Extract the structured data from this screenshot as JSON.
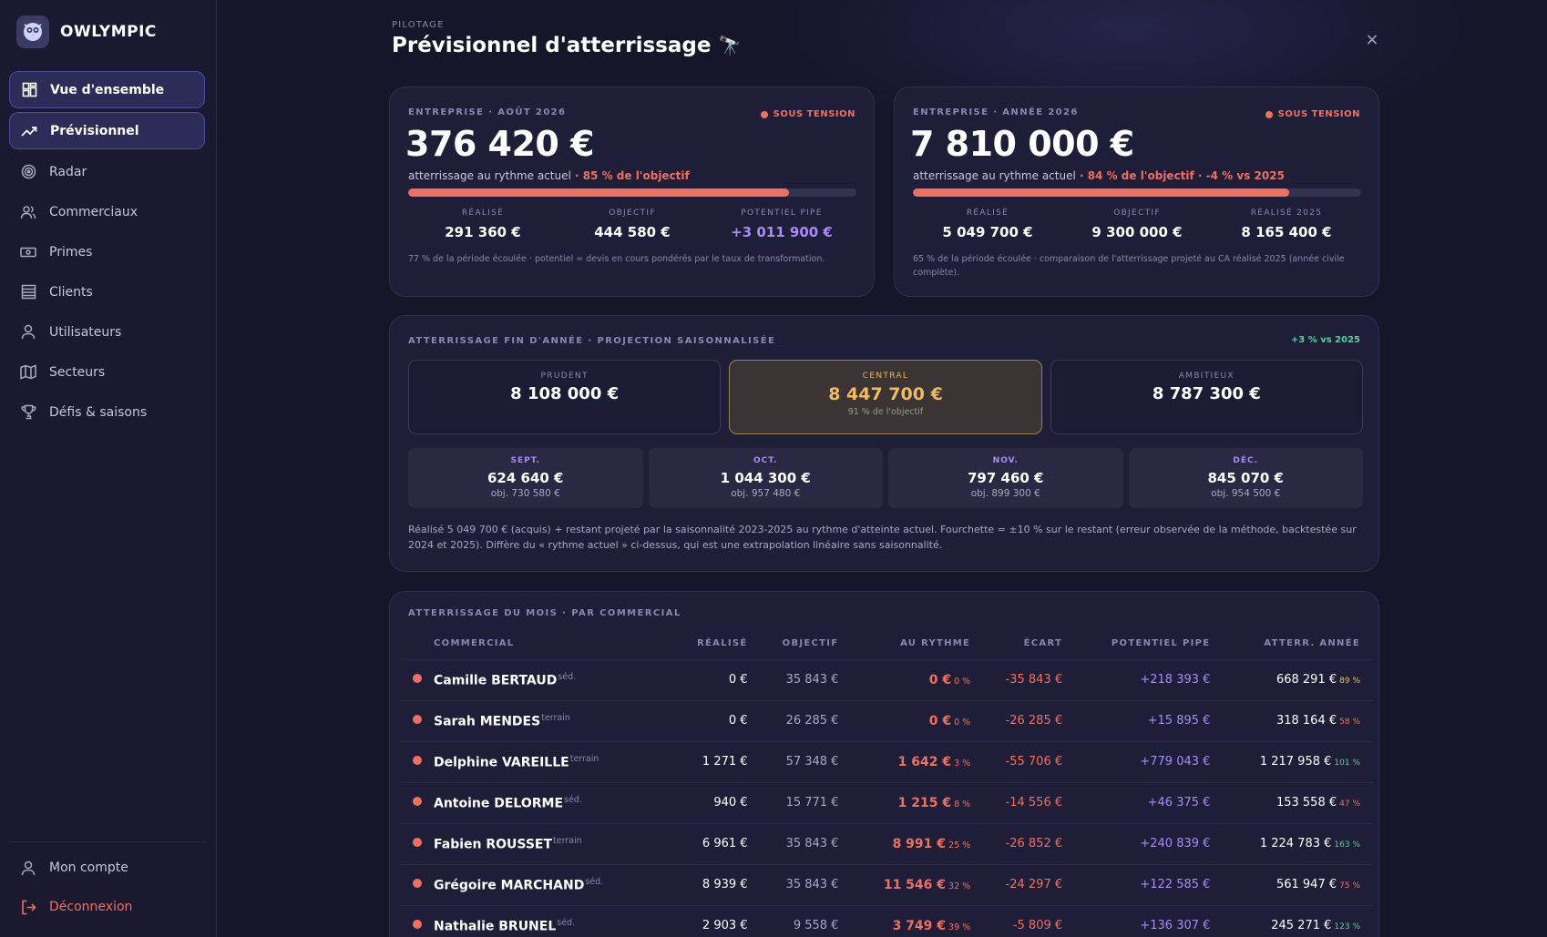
{
  "brand": {
    "name": "OWLYMPIC"
  },
  "nav": {
    "items": [
      {
        "label": "Vue d'ensemble"
      },
      {
        "label": "Prévisionnel"
      },
      {
        "label": "Radar"
      },
      {
        "label": "Commerciaux"
      },
      {
        "label": "Primes"
      },
      {
        "label": "Clients"
      },
      {
        "label": "Utilisateurs"
      },
      {
        "label": "Secteurs"
      },
      {
        "label": "Défis & saisons"
      }
    ],
    "account": "Mon compte",
    "logout": "Déconnexion"
  },
  "header": {
    "kicker": "PILOTAGE",
    "title": "Prévisionnel d'atterrissage",
    "emoji": "🔭",
    "close": "×"
  },
  "month_card": {
    "label": "ENTREPRISE · AOÛT 2026",
    "status": "SOUS TENSION",
    "value": "376 420 €",
    "sub_prefix": "atterrissage au rythme actuel",
    "sub_highlight": " · 85 % de l'objectif",
    "progress": 0.85,
    "stats": [
      {
        "label": "RÉALISÉ",
        "value": "291 360 €"
      },
      {
        "label": "OBJECTIF",
        "value": "444 580 €"
      },
      {
        "label": "POTENTIEL PIPE",
        "value": "+3 011 900 €"
      }
    ],
    "note": "77 % de la période écoulée · potentiel = devis en cours pondérés par le taux de transformation."
  },
  "year_card": {
    "label": "ENTREPRISE · ANNÉE 2026",
    "status": "SOUS TENSION",
    "value": "7 810 000 €",
    "sub_prefix": "atterrissage au rythme actuel",
    "sub_highlight": " · 84 % de l'objectif · -4 % vs 2025",
    "progress": 0.84,
    "stats": [
      {
        "label": "RÉALISÉ",
        "value": "5 049 700 €"
      },
      {
        "label": "OBJECTIF",
        "value": "9 300 000 €"
      },
      {
        "label": "RÉALISÉ 2025",
        "value": "8 165 400 €"
      }
    ],
    "note": "65 % de la période écoulée · comparaison de l'atterrissage projeté au CA réalisé 2025 (année civile complète)."
  },
  "projection": {
    "label": "ATTERRISSAGE FIN D'ANNÉE · PROJECTION SAISONNALISÉE",
    "badge": "+3 % vs 2025",
    "scenarios": [
      {
        "label": "PRUDENT",
        "value": "8 108 000 €",
        "sub": ""
      },
      {
        "label": "CENTRAL",
        "value": "8 447 700 €",
        "sub": "91 % de l'objectif"
      },
      {
        "label": "AMBITIEUX",
        "value": "8 787 300 €",
        "sub": ""
      }
    ],
    "months": [
      {
        "label": "SEPT.",
        "value": "624 640 €",
        "obj": "obj. 730 580 €"
      },
      {
        "label": "OCT.",
        "value": "1 044 300 €",
        "obj": "obj. 957 480 €"
      },
      {
        "label": "NOV.",
        "value": "797 460 €",
        "obj": "obj. 899 300 €"
      },
      {
        "label": "DÉC.",
        "value": "845 070 €",
        "obj": "obj. 954 500 €"
      }
    ],
    "note": "Réalisé 5 049 700 € (acquis) + restant projeté par la saisonnalité 2023-2025 au rythme d'atteinte actuel. Fourchette = ±10 % sur le restant (erreur observée de la méthode, backtestée sur 2024 et 2025). Diffère du « rythme actuel » ci-dessus, qui est une extrapolation linéaire sans saisonnalité."
  },
  "reps": {
    "label": "ATTERRISSAGE DU MOIS · PAR COMMERCIAL",
    "columns": [
      "COMMERCIAL",
      "RÉALISÉ",
      "OBJECTIF",
      "AU RYTHME",
      "ÉCART",
      "POTENTIEL PIPE",
      "ATTERR. ANNÉE"
    ],
    "rows": [
      {
        "name": "Camille BERTAUD",
        "role": "séd.",
        "realise": "0 €",
        "objectif": "35 843 €",
        "pace": "0 €",
        "pace_pct": "0 %",
        "gap": "-35 843 €",
        "pipe": "+218 393 €",
        "year": "668 291 €",
        "year_pct": "89 %",
        "year_color": "#eebb5e"
      },
      {
        "name": "Sarah MENDES",
        "role": "terrain",
        "realise": "0 €",
        "objectif": "26 285 €",
        "pace": "0 €",
        "pace_pct": "0 %",
        "gap": "-26 285 €",
        "pipe": "+15 895 €",
        "year": "318 164 €",
        "year_pct": "58 %",
        "year_color": "#f0705f"
      },
      {
        "name": "Delphine VAREILLE",
        "role": "terrain",
        "realise": "1 271 €",
        "objectif": "57 348 €",
        "pace": "1 642 €",
        "pace_pct": "3 %",
        "gap": "-55 706 €",
        "pipe": "+779 043 €",
        "year": "1 217 958 €",
        "year_pct": "101 %",
        "year_color": "#4fd59b"
      },
      {
        "name": "Antoine DELORME",
        "role": "séd.",
        "realise": "940 €",
        "objectif": "15 771 €",
        "pace": "1 215 €",
        "pace_pct": "8 %",
        "gap": "-14 556 €",
        "pipe": "+46 375 €",
        "year": "153 558 €",
        "year_pct": "47 %",
        "year_color": "#f0705f"
      },
      {
        "name": "Fabien ROUSSET",
        "role": "terrain",
        "realise": "6 961 €",
        "objectif": "35 843 €",
        "pace": "8 991 €",
        "pace_pct": "25 %",
        "gap": "-26 852 €",
        "pipe": "+240 839 €",
        "year": "1 224 783 €",
        "year_pct": "163 %",
        "year_color": "#4fd59b"
      },
      {
        "name": "Grégoire MARCHAND",
        "role": "séd.",
        "realise": "8 939 €",
        "objectif": "35 843 €",
        "pace": "11 546 €",
        "pace_pct": "32 %",
        "gap": "-24 297 €",
        "pipe": "+122 585 €",
        "year": "561 947 €",
        "year_pct": "75 %",
        "year_color": "#f0705f"
      },
      {
        "name": "Nathalie BRUNEL",
        "role": "séd.",
        "realise": "2 903 €",
        "objectif": "9 558 €",
        "pace": "3 749 €",
        "pace_pct": "39 %",
        "gap": "-5 809 €",
        "pipe": "+136 307 €",
        "year": "245 271 €",
        "year_pct": "123 %",
        "year_color": "#4fd59b"
      }
    ]
  }
}
